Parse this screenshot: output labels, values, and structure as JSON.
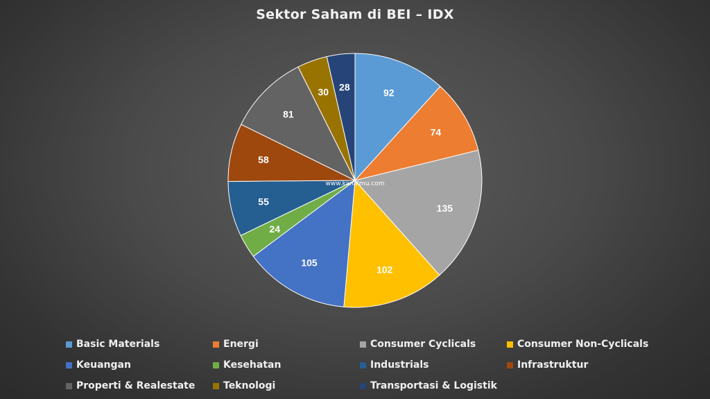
{
  "title": "Sektor Saham di BEI – IDX",
  "watermark": "www.kanalmu.com",
  "chart_data": {
    "type": "pie",
    "title": "Sektor Saham di BEI – IDX",
    "categories": [
      "Basic Materials",
      "Energi",
      "Consumer Cyclicals",
      "Consumer Non-Cyclicals",
      "Keuangan",
      "Kesehatan",
      "Industrials",
      "Infrastruktur",
      "Properti & Realestate",
      "Teknologi",
      "Transportasi & Logistik"
    ],
    "values": [
      92,
      74,
      135,
      102,
      105,
      24,
      55,
      58,
      81,
      30,
      28
    ],
    "colors": [
      "#5b9bd5",
      "#ed7d31",
      "#a5a5a5",
      "#ffc000",
      "#4472c4",
      "#70ad47",
      "#255e91",
      "#9e480e",
      "#636363",
      "#997300",
      "#264478"
    ],
    "legend_position": "bottom",
    "data_labels": true
  }
}
